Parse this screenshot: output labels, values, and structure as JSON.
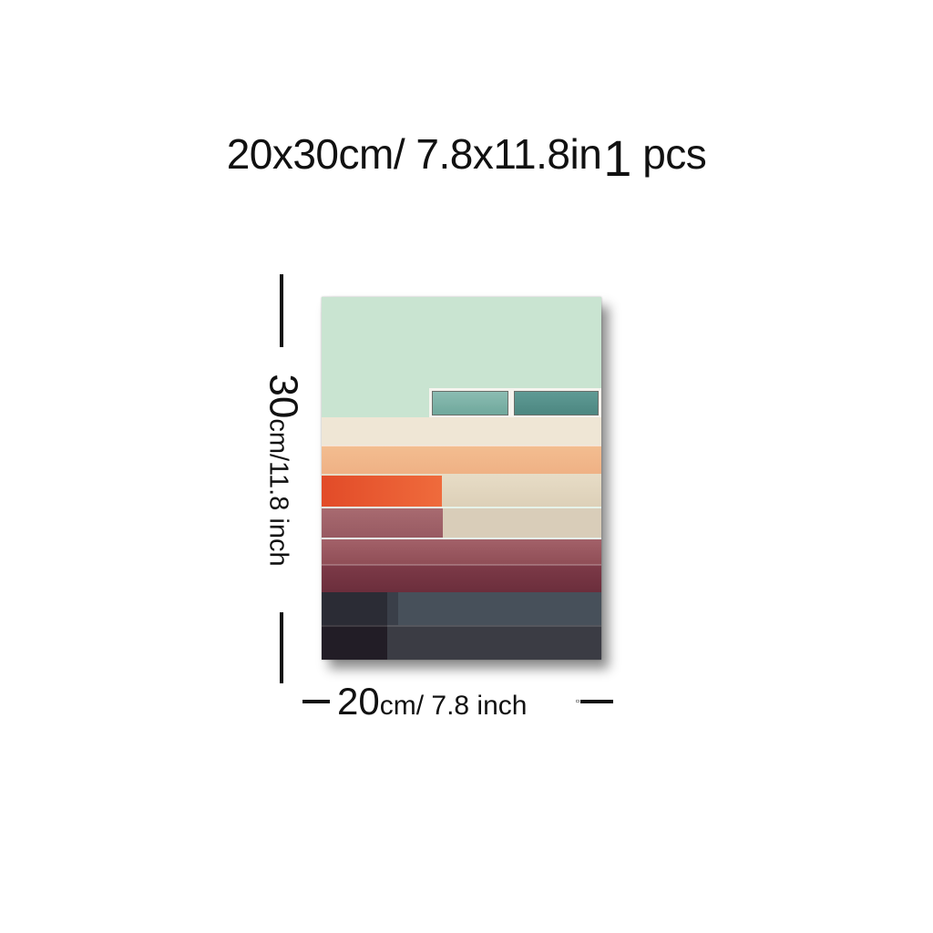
{
  "headline": {
    "size_cm": "20x30cm/",
    "size_in": "7.8x11.8in",
    "qty_number": "1",
    "qty_unit": "pcs"
  },
  "height_marker": {
    "value": "30",
    "unit_text": "cm/11.8 inch"
  },
  "width_marker": {
    "value": "20",
    "unit_text": "cm/ 7.8 inch"
  },
  "artwork": {
    "subject": "abstract architectural facade with horizontal colored stripes and two windows",
    "colors": {
      "sky": "#c9e4d1",
      "cream": "#efe6d5",
      "peach": "#f3bd90",
      "beige": "#e7dcc6",
      "orange_red": "#e24b28",
      "rose": "#a86a70",
      "plum": "#7d3a48",
      "slate": "#47505a",
      "dark": "#221d26",
      "window_teal": "#5f9b95"
    }
  }
}
